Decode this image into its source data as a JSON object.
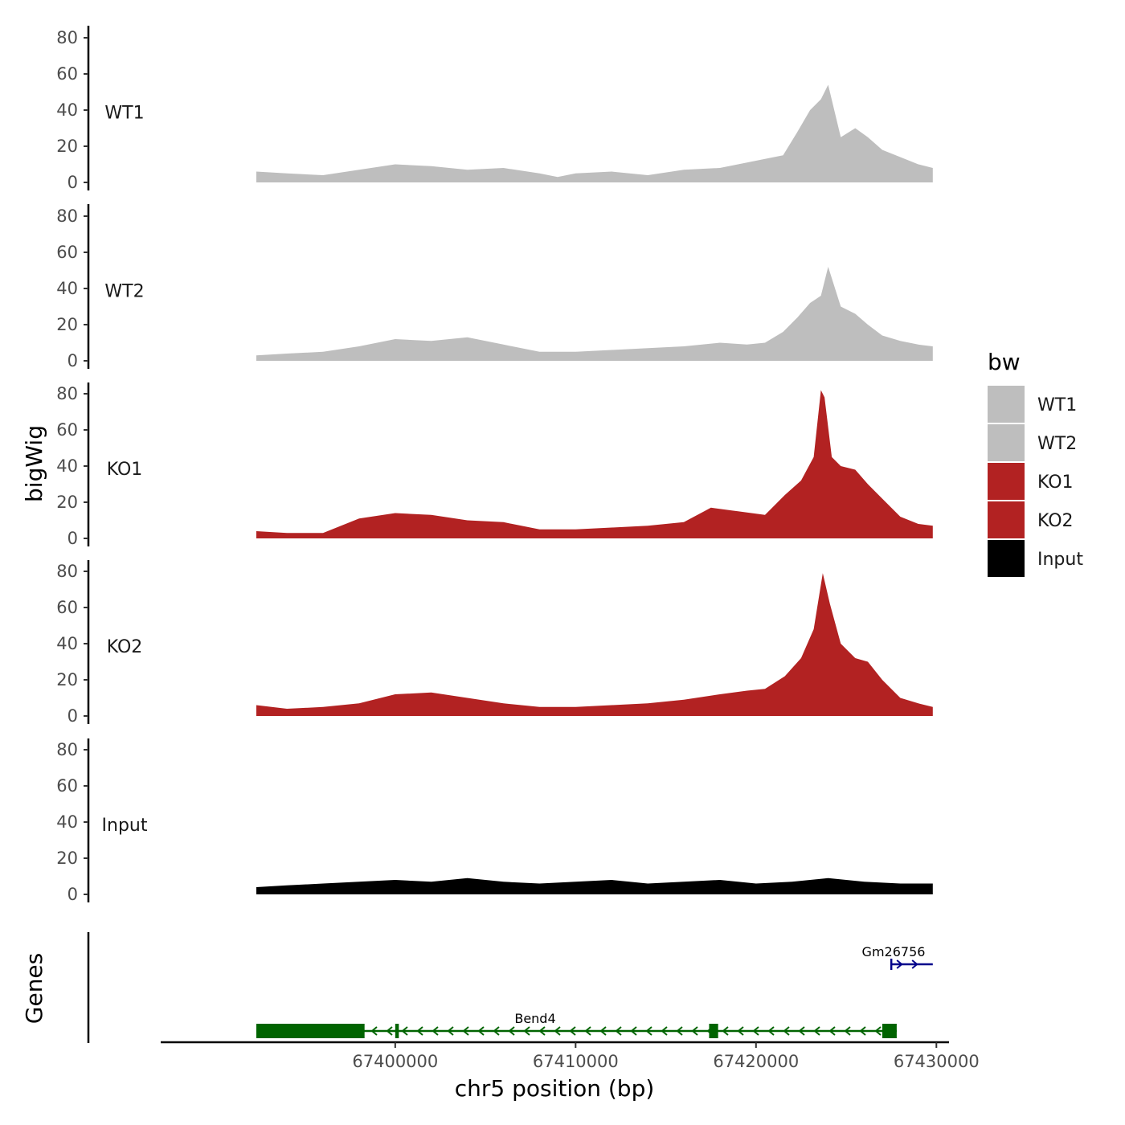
{
  "chart_data": {
    "type": "area",
    "title": "",
    "xlabel": "chr5 position (bp)",
    "ylabel": "bigWig",
    "genes_panel_label": "Genes",
    "x_range": [
      67392300,
      67429800
    ],
    "x_axis_limits": [
      67387000,
      67430700
    ],
    "ylim": [
      0,
      88
    ],
    "y_ticks": [
      0,
      20,
      40,
      60,
      80
    ],
    "x_ticks": [
      67400000,
      67410000,
      67420000,
      67430000
    ],
    "x_tick_labels": [
      "67400000",
      "67410000",
      "67420000",
      "67430000"
    ],
    "legend": {
      "title": "bw",
      "position": "right",
      "entries": [
        {
          "label": "WT1",
          "color": "#bebebe"
        },
        {
          "label": "WT2",
          "color": "#bebebe"
        },
        {
          "label": "KO1",
          "color": "#b22222"
        },
        {
          "label": "KO2",
          "color": "#b22222"
        },
        {
          "label": "Input",
          "color": "#000000"
        }
      ]
    },
    "series": [
      {
        "name": "WT1",
        "color": "#bebebe",
        "x": [
          67392300,
          67394000,
          67396000,
          67398000,
          67400000,
          67402000,
          67404000,
          67406000,
          67408000,
          67409000,
          67410000,
          67412000,
          67414000,
          67416000,
          67418000,
          67419500,
          67420500,
          67421500,
          67422300,
          67423000,
          67423600,
          67424000,
          67424700,
          67425500,
          67426200,
          67427000,
          67428000,
          67429000,
          67429800
        ],
        "values": [
          6,
          5,
          4,
          7,
          10,
          9,
          7,
          8,
          5,
          3,
          5,
          6,
          4,
          7,
          8,
          11,
          13,
          15,
          28,
          40,
          46,
          54,
          25,
          30,
          25,
          18,
          14,
          10,
          8
        ]
      },
      {
        "name": "WT2",
        "color": "#bebebe",
        "x": [
          67392300,
          67394000,
          67396000,
          67398000,
          67400000,
          67402000,
          67404000,
          67406000,
          67408000,
          67410000,
          67412000,
          67414000,
          67416000,
          67418000,
          67419500,
          67420500,
          67421500,
          67422300,
          67423000,
          67423600,
          67424000,
          67424700,
          67425500,
          67426200,
          67427000,
          67428000,
          67429000,
          67429800
        ],
        "values": [
          3,
          4,
          5,
          8,
          12,
          11,
          13,
          9,
          5,
          5,
          6,
          7,
          8,
          10,
          9,
          10,
          16,
          24,
          32,
          36,
          52,
          30,
          26,
          20,
          14,
          11,
          9,
          8
        ]
      },
      {
        "name": "KO1",
        "color": "#b22222",
        "x": [
          67392300,
          67394000,
          67396000,
          67398000,
          67400000,
          67402000,
          67404000,
          67406000,
          67408000,
          67410000,
          67412000,
          67414000,
          67416000,
          67417500,
          67419000,
          67420500,
          67421600,
          67422500,
          67423200,
          67423600,
          67423800,
          67424200,
          67424700,
          67425500,
          67426200,
          67427000,
          67428000,
          67429000,
          67429800
        ],
        "values": [
          4,
          3,
          3,
          11,
          14,
          13,
          10,
          9,
          5,
          5,
          6,
          7,
          9,
          17,
          15,
          13,
          24,
          32,
          45,
          82,
          78,
          45,
          40,
          38,
          30,
          22,
          12,
          8,
          7
        ]
      },
      {
        "name": "KO2",
        "color": "#b22222",
        "x": [
          67392300,
          67394000,
          67396000,
          67398000,
          67400000,
          67402000,
          67404000,
          67406000,
          67408000,
          67410000,
          67412000,
          67414000,
          67416000,
          67418000,
          67419500,
          67420500,
          67421600,
          67422500,
          67423200,
          67423700,
          67424100,
          67424700,
          67425500,
          67426200,
          67427000,
          67428000,
          67429000,
          67429800
        ],
        "values": [
          6,
          4,
          5,
          7,
          12,
          13,
          10,
          7,
          5,
          5,
          6,
          7,
          9,
          12,
          14,
          15,
          22,
          32,
          48,
          79,
          62,
          40,
          32,
          30,
          20,
          10,
          7,
          5
        ]
      },
      {
        "name": "Input",
        "color": "#000000",
        "x": [
          67392300,
          67394000,
          67396000,
          67398000,
          67400000,
          67402000,
          67404000,
          67406000,
          67408000,
          67410000,
          67412000,
          67414000,
          67416000,
          67418000,
          67420000,
          67422000,
          67424000,
          67426000,
          67428000,
          67429800
        ],
        "values": [
          4,
          5,
          6,
          7,
          8,
          7,
          9,
          7,
          6,
          7,
          8,
          6,
          7,
          8,
          6,
          7,
          9,
          7,
          6,
          6
        ]
      }
    ],
    "genes": [
      {
        "name": "Bend4",
        "strand": "-",
        "color": "#006400",
        "start": 67392300,
        "end": 67427800,
        "exons": [
          [
            67392300,
            67398300
          ],
          [
            67400000,
            67400200
          ],
          [
            67417400,
            67417900
          ],
          [
            67427000,
            67427800
          ]
        ]
      },
      {
        "name": "Gm26756",
        "strand": "+",
        "color": "#00008b",
        "start": 67427500,
        "end": 67429800,
        "exons": []
      }
    ]
  }
}
